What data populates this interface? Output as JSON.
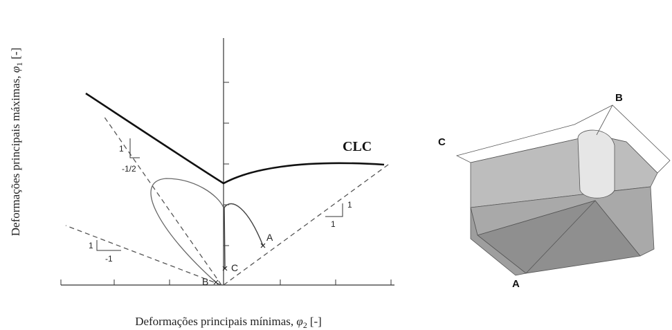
{
  "left_diagram": {
    "curve_label": "CLC",
    "x_axis_label": {
      "text": "Deformações principais mínimas, ",
      "symbol": "φ",
      "subscript": "2",
      "unit": "[-]"
    },
    "y_axis_label": {
      "text": "Deformações principais máximas, ",
      "symbol": "φ",
      "subscript": "1",
      "unit": "[-]"
    },
    "points": [
      "A",
      "B",
      "C"
    ],
    "slopes": [
      {
        "rise": "1",
        "run": "-1/2"
      },
      {
        "rise": "1",
        "run": "-1"
      },
      {
        "rise": "1",
        "run": "1"
      }
    ]
  },
  "right_image": {
    "points": [
      "A",
      "B",
      "C"
    ]
  }
}
